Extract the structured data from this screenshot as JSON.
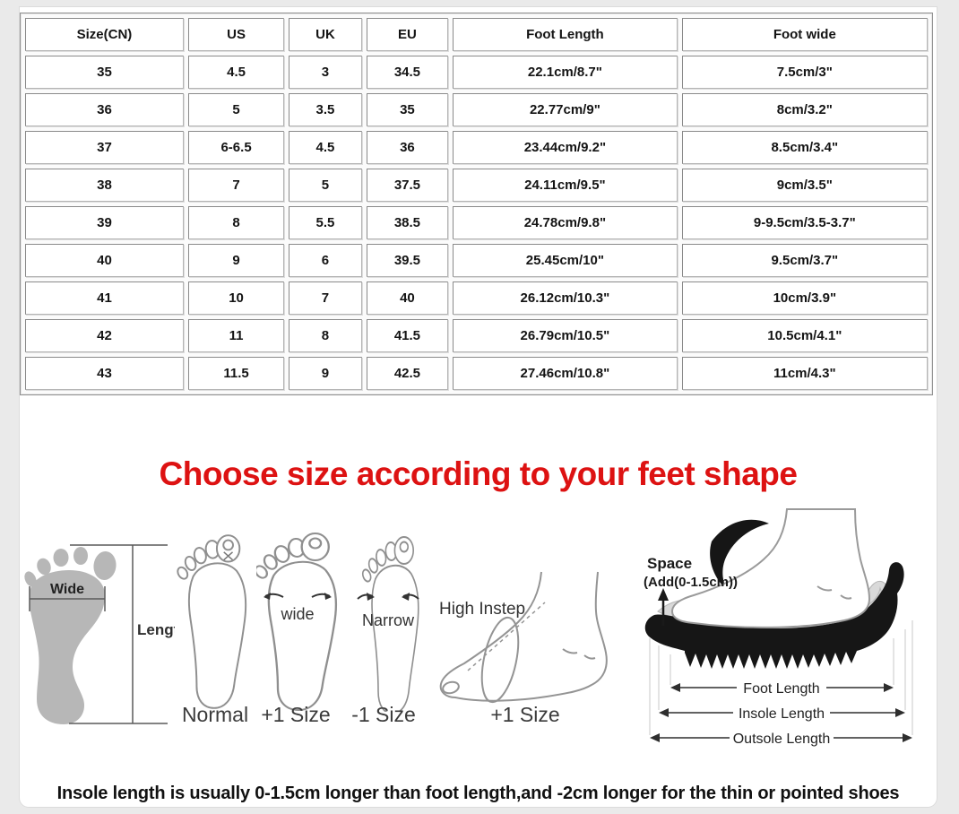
{
  "table": {
    "headers": [
      "Size(CN)",
      "US",
      "UK",
      "EU",
      "Foot Length",
      "Foot wide"
    ],
    "rows": [
      [
        "35",
        "4.5",
        "3",
        "34.5",
        "22.1cm/8.7\"",
        "7.5cm/3\""
      ],
      [
        "36",
        "5",
        "3.5",
        "35",
        "22.77cm/9\"",
        "8cm/3.2\""
      ],
      [
        "37",
        "6-6.5",
        "4.5",
        "36",
        "23.44cm/9.2\"",
        "8.5cm/3.4\""
      ],
      [
        "38",
        "7",
        "5",
        "37.5",
        "24.11cm/9.5\"",
        "9cm/3.5\""
      ],
      [
        "39",
        "8",
        "5.5",
        "38.5",
        "24.78cm/9.8\"",
        "9-9.5cm/3.5-3.7\""
      ],
      [
        "40",
        "9",
        "6",
        "39.5",
        "25.45cm/10\"",
        "9.5cm/3.7\""
      ],
      [
        "41",
        "10",
        "7",
        "40",
        "26.12cm/10.3\"",
        "10cm/3.9\""
      ],
      [
        "42",
        "11",
        "8",
        "41.5",
        "26.79cm/10.5\"",
        "10.5cm/4.1\""
      ],
      [
        "43",
        "11.5",
        "9",
        "42.5",
        "27.46cm/10.8\"",
        "11cm/4.3\""
      ]
    ]
  },
  "heading": {
    "text": "Choose size according to your feet shape",
    "color": "#dd1212"
  },
  "measure_diagram": {
    "wide_label": "Wide",
    "length_label": "Length"
  },
  "feet_examples": {
    "normal_caption": "Normal",
    "wide_caption": "+1 Size",
    "wide_annotation": "wide",
    "narrow_caption": "-1 Size",
    "narrow_annotation": "Narrow",
    "instep_caption": "+1 Size",
    "instep_annotation": "High Instep"
  },
  "shoe_diagram": {
    "space_label": "Space",
    "space_add_label": "(Add(0-1.5cm))",
    "measurements": [
      "Foot Length",
      "Insole Length",
      "Outsole Length"
    ]
  },
  "footnote": "Insole length is usually 0-1.5cm longer than foot length,and -2cm longer for the thin or pointed shoes"
}
